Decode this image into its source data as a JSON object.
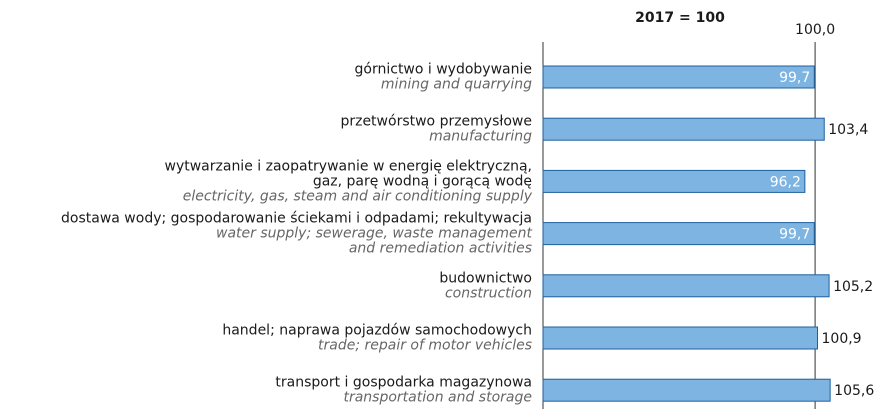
{
  "chart_data": {
    "type": "bar",
    "orientation": "horizontal",
    "subtitle": "2017 = 100",
    "categories": [
      [
        "górnictwo i wydobywanie"
      ],
      [
        "przetwórstwo przemysłowe"
      ],
      [
        "wytwarzanie i zaopatrywanie w energię elektryczną,",
        "gaz, parę wodną i gorącą wodę"
      ],
      [
        "dostawa wody; gospodarowanie ściekami i odpadami; rekultywacja"
      ],
      [
        "budownictwo"
      ],
      [
        "handel; naprawa pojazdów samochodowych"
      ],
      [
        "transport i gospodarka magazynowa"
      ]
    ],
    "categories_en": [
      [
        "mining and quarrying"
      ],
      [
        "manufacturing"
      ],
      [
        "electricity, gas, steam and air conditioning supply"
      ],
      [
        "water supply; sewerage, waste management",
        "and remediation activities"
      ],
      [
        "construction"
      ],
      [
        "trade; repair of motor vehicles"
      ],
      [
        "transportation and storage"
      ]
    ],
    "values": [
      99.7,
      103.4,
      96.2,
      99.7,
      105.2,
      100.9,
      105.6
    ],
    "value_labels": [
      "99,7",
      "103,4",
      "96,2",
      "99,7",
      "105,2",
      "100,9",
      "105,6"
    ],
    "color": "#7db4e2",
    "xlim": [
      0,
      110
    ],
    "xticks": [
      {
        "value": 100,
        "label": "100,0"
      }
    ]
  }
}
